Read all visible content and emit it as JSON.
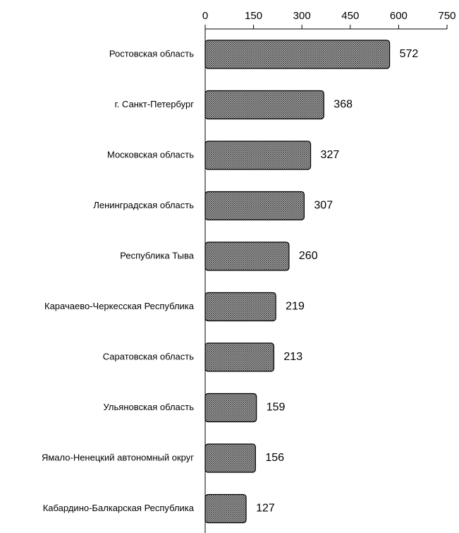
{
  "chart_data": {
    "type": "bar",
    "orientation": "horizontal",
    "title": "",
    "xlabel": "",
    "ylabel": "",
    "xlim": [
      0,
      750
    ],
    "xticks": [
      0,
      150,
      300,
      450,
      600,
      750
    ],
    "x_axis_position": "top",
    "grid": false,
    "legend": "none",
    "categories": [
      "Ростовская область",
      "г. Санкт-Петербург",
      "Московская область",
      "Ленинградская область",
      "Республика Тыва",
      "Карачаево-Черкесская Республика",
      "Саратовская область",
      "Ульяновская область",
      "Ямало-Ненецкий автономный округ",
      "Кабардино-Балкарская Республика"
    ],
    "values": [
      572,
      368,
      327,
      307,
      260,
      219,
      213,
      159,
      156,
      127
    ],
    "bar_fill": "#9a9a9a",
    "bar_pattern": "crosshatch",
    "bar_stroke": "#000000"
  }
}
